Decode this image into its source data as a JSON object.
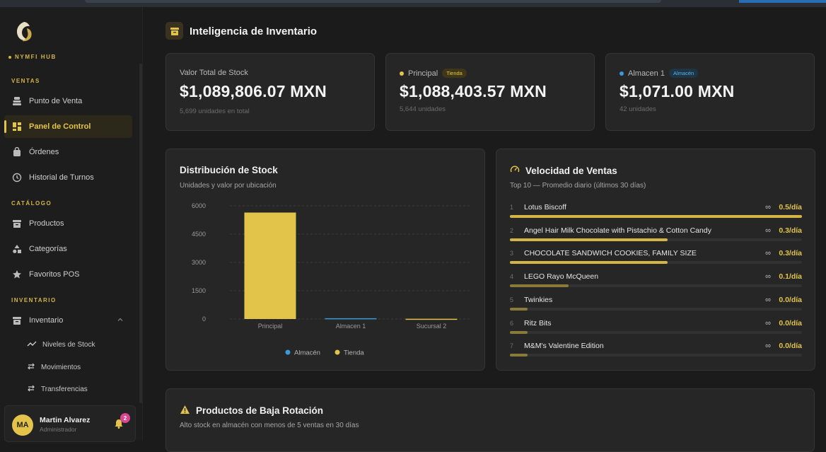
{
  "app": {
    "brand": "NYMFI HUB",
    "page_title": "Inteligencia de Inventario",
    "accent": "#e3c44a"
  },
  "sidebar": {
    "sections": {
      "ventas": "VENTAS",
      "catalogo": "CATÁLOGO",
      "inventario": "INVENTARIO"
    },
    "items": [
      {
        "label": "Punto de Venta",
        "icon": "register-icon"
      },
      {
        "label": "Panel de Control",
        "icon": "dashboard-icon",
        "active": true
      },
      {
        "label": "Órdenes",
        "icon": "bag-icon"
      },
      {
        "label": "Historial de Turnos",
        "icon": "clock-icon"
      },
      {
        "label": "Productos",
        "icon": "box-icon"
      },
      {
        "label": "Categorías",
        "icon": "shapes-icon"
      },
      {
        "label": "Favoritos POS",
        "icon": "star-icon"
      },
      {
        "label": "Inventario",
        "icon": "archive-icon",
        "expanded": true
      }
    ],
    "subitems": [
      {
        "label": "Niveles de Stock",
        "icon": "trend-icon"
      },
      {
        "label": "Movimientos",
        "icon": "swap-icon"
      },
      {
        "label": "Transferencias",
        "icon": "swap-icon"
      }
    ],
    "user": {
      "initials": "MA",
      "name": "Martin Alvarez",
      "role": "Administrador",
      "notifications": "2"
    }
  },
  "stats": [
    {
      "label": "Valor Total de Stock",
      "value": "$1,089,806.07 MXN",
      "sub": "5,699 unidades en total"
    },
    {
      "label": "Principal",
      "tag": "Tienda",
      "dot_color": "#e3c44a",
      "value": "$1,088,403.57 MXN",
      "sub": "5,644 unidades"
    },
    {
      "label": "Almacen 1",
      "tag": "Almacén",
      "dot_color": "#3b9ad9",
      "value": "$1,071.00 MXN",
      "sub": "42 unidades"
    }
  ],
  "distribution": {
    "title": "Distribución de Stock",
    "subtitle": "Unidades y valor por ubicación",
    "legend": [
      {
        "label": "Almacén",
        "color": "#3b9ad9"
      },
      {
        "label": "Tienda",
        "color": "#e3c44a"
      }
    ]
  },
  "chart_data": {
    "type": "bar",
    "categories": [
      "Principal",
      "Almacen 1",
      "Sucursal 2"
    ],
    "series": [
      {
        "name": "Tienda",
        "values": [
          5644,
          0,
          13
        ]
      },
      {
        "name": "Almacén",
        "values": [
          0,
          42,
          0
        ]
      }
    ],
    "yticks": [
      "6000",
      "4500",
      "3000",
      "1500",
      "0"
    ],
    "ylim": [
      0,
      6000
    ],
    "grid": true,
    "legend_position": "bottom"
  },
  "velocity": {
    "title": "Velocidad de Ventas",
    "subtitle": "Top 10 — Promedio diario (últimos 30 días)",
    "infinity": "∞",
    "rows": [
      {
        "rank": "1",
        "name": "Lotus Biscoff",
        "rate": "0.5/día",
        "level": 1.0
      },
      {
        "rank": "2",
        "name": "Angel Hair Milk Chocolate with Pistachio & Cotton Candy",
        "rate": "0.3/día",
        "level": 0.54
      },
      {
        "rank": "3",
        "name": "CHOCOLATE SANDWICH COOKIES, FAMILY SIZE",
        "rate": "0.3/día",
        "level": 0.54
      },
      {
        "rank": "4",
        "name": "LEGO Rayo McQueen",
        "rate": "0.1/día",
        "level": 0.2
      },
      {
        "rank": "5",
        "name": "Twinkies",
        "rate": "0.0/día",
        "level": 0.06
      },
      {
        "rank": "6",
        "name": "Ritz Bits",
        "rate": "0.0/día",
        "level": 0.06
      },
      {
        "rank": "7",
        "name": "M&M's Valentine Edition",
        "rate": "0.0/día",
        "level": 0.06
      }
    ]
  },
  "low_rotation": {
    "title": "Productos de Baja Rotación",
    "subtitle": "Alto stock en almacén con menos de 5 ventas en 30 días"
  }
}
